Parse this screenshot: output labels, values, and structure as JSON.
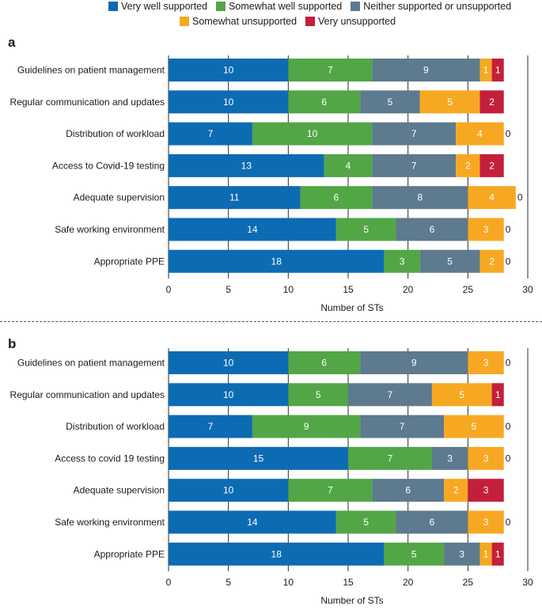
{
  "legend": {
    "items": [
      {
        "name": "Very well supported",
        "color": "#0d6bb3"
      },
      {
        "name": "Somewhat well supported",
        "color": "#52a646"
      },
      {
        "name": "Neither supported or unsupported",
        "color": "#5d7a8e"
      },
      {
        "name": "Somewhat unsupported",
        "color": "#f7a823"
      },
      {
        "name": "Very unsupported",
        "color": "#c41f3a"
      }
    ]
  },
  "chart_data": [
    {
      "panel": "a",
      "type": "bar",
      "orientation": "horizontal",
      "stacked": true,
      "xlabel": "Number of STs",
      "xlim": [
        0,
        30
      ],
      "xticks": [
        0,
        5,
        10,
        15,
        20,
        25,
        30
      ],
      "categories": [
        "Guidelines on patient management",
        "Regular communication and updates",
        "Distribution of workload",
        "Access to Covid-19 testing",
        "Adequate supervision",
        "Safe working environment",
        "Appropriate PPE"
      ],
      "series": [
        {
          "name": "Very well supported",
          "values": [
            10,
            10,
            7,
            13,
            11,
            14,
            18
          ]
        },
        {
          "name": "Somewhat well supported",
          "values": [
            7,
            6,
            10,
            4,
            6,
            5,
            3
          ]
        },
        {
          "name": "Neither supported or unsupported",
          "values": [
            9,
            5,
            7,
            7,
            8,
            6,
            5
          ]
        },
        {
          "name": "Somewhat unsupported",
          "values": [
            1,
            5,
            4,
            2,
            4,
            3,
            2
          ]
        },
        {
          "name": "Very unsupported",
          "values": [
            1,
            2,
            0,
            2,
            0,
            0,
            0
          ]
        }
      ]
    },
    {
      "panel": "b",
      "type": "bar",
      "orientation": "horizontal",
      "stacked": true,
      "xlabel": "Number of STs",
      "xlim": [
        0,
        30
      ],
      "xticks": [
        0,
        5,
        10,
        15,
        20,
        25,
        30
      ],
      "categories": [
        "Guidelines on patient management",
        "Regular communication and updates",
        "Distribution of workload",
        "Access to covid 19 testing",
        "Adequate supervision",
        "Safe working environment",
        "Appropriate PPE"
      ],
      "series": [
        {
          "name": "Very well supported",
          "values": [
            10,
            10,
            7,
            15,
            10,
            14,
            18
          ]
        },
        {
          "name": "Somewhat well supported",
          "values": [
            6,
            5,
            9,
            7,
            7,
            5,
            5
          ]
        },
        {
          "name": "Neither supported or unsupported",
          "values": [
            9,
            7,
            7,
            3,
            6,
            6,
            3
          ]
        },
        {
          "name": "Somewhat unsupported",
          "values": [
            3,
            5,
            5,
            3,
            2,
            3,
            1
          ]
        },
        {
          "name": "Very unsupported",
          "values": [
            0,
            1,
            0,
            0,
            3,
            0,
            1
          ]
        }
      ]
    }
  ]
}
